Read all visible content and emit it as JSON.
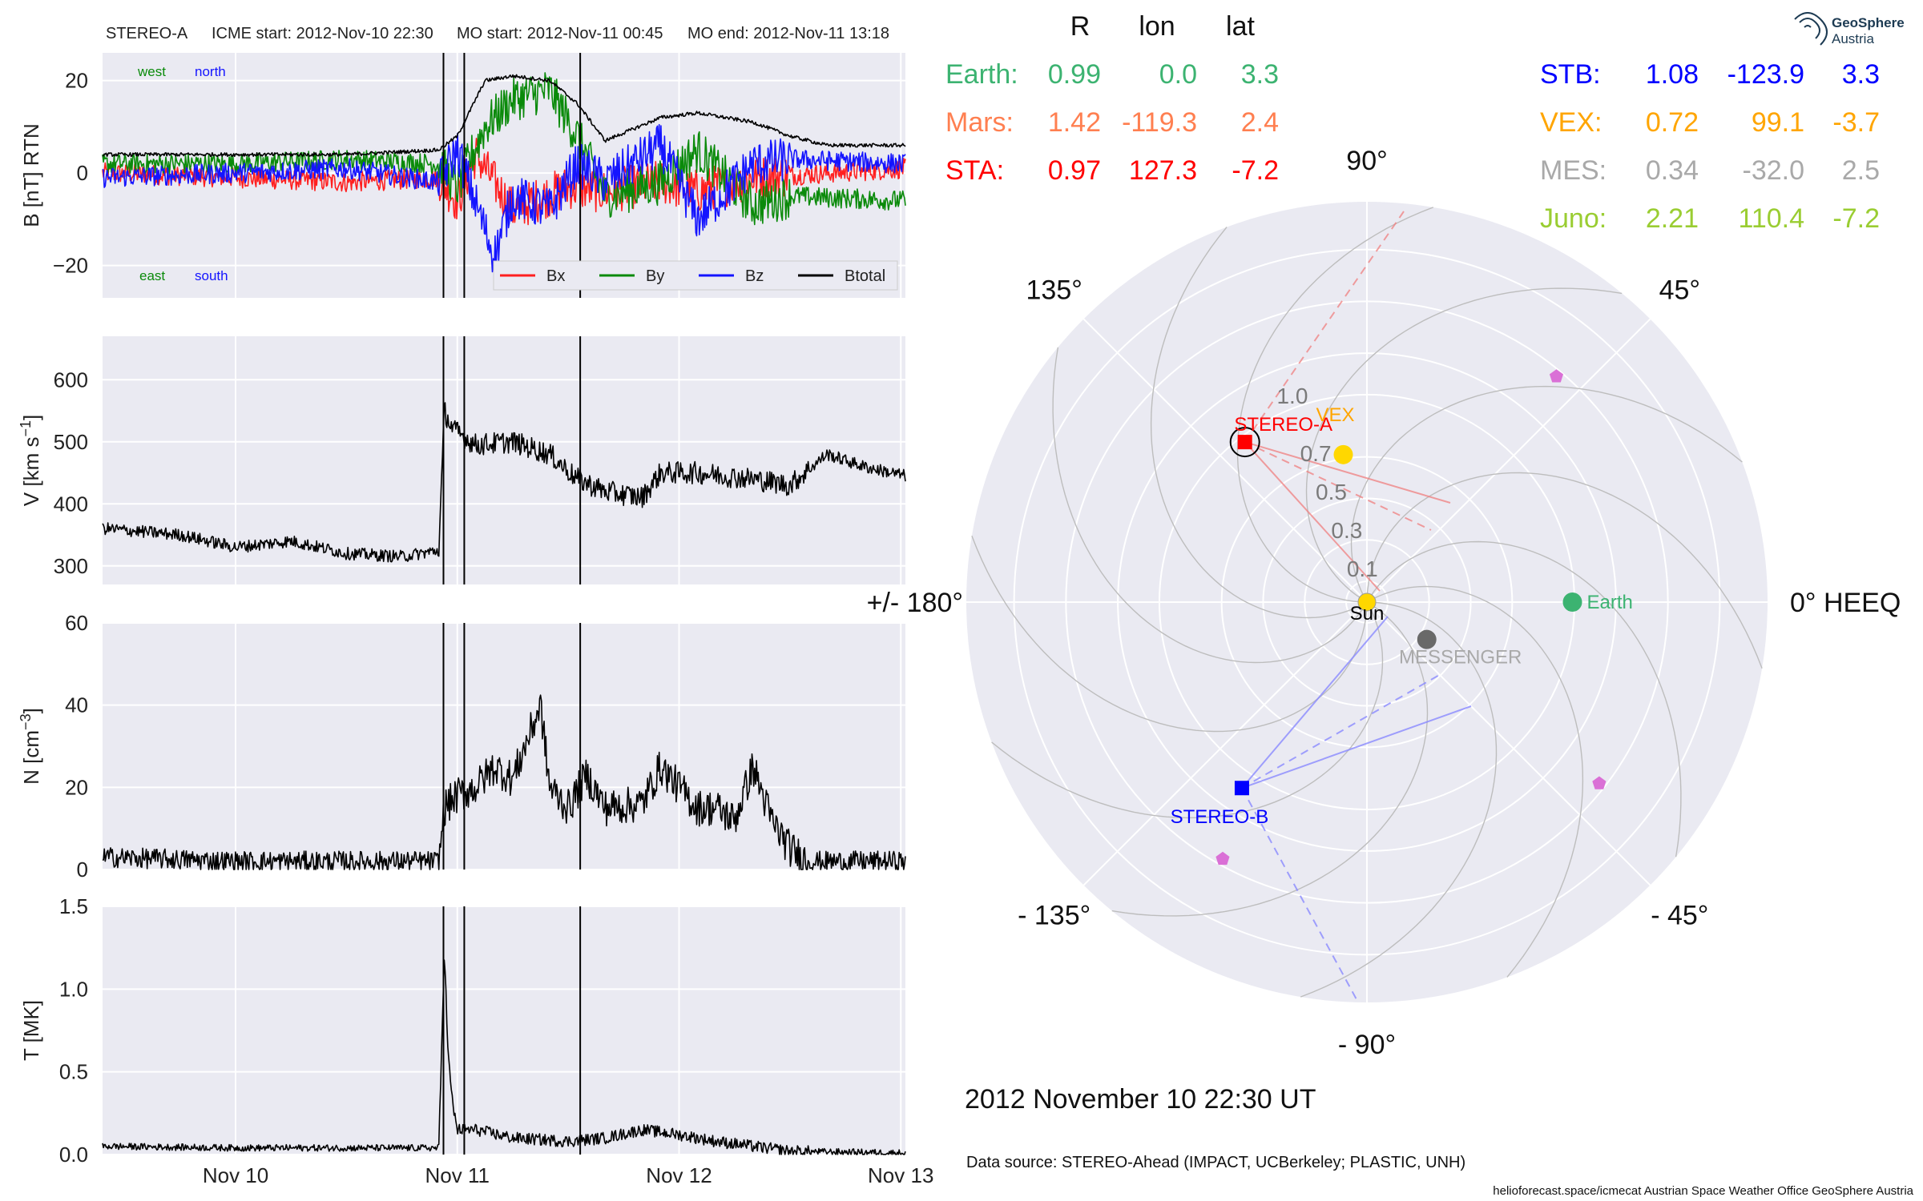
{
  "header": {
    "spacecraft": "STEREO-A",
    "icme_start": "ICME start: 2012-Nov-10 22:30",
    "mo_start": "MO start: 2012-Nov-11 00:45",
    "mo_end": "MO end: 2012-Nov-11 13:18"
  },
  "logo": {
    "line1": "GeoSphere",
    "line2": "Austria"
  },
  "event_markers_hours": [
    22.5,
    24.75,
    37.3
  ],
  "time_axis": {
    "start_hours": -14.4,
    "end_hours": 72.5,
    "ticks": [
      {
        "h": 0,
        "label": "Nov 10"
      },
      {
        "h": 24,
        "label": "Nov 11"
      },
      {
        "h": 48,
        "label": "Nov 12"
      },
      {
        "h": 72,
        "label": "Nov 13"
      }
    ]
  },
  "panels": {
    "b": {
      "ylabel": "B [nT] RTN",
      "ylim": [
        -27,
        26
      ],
      "yticks": [
        {
          "v": 20,
          "label": "20"
        },
        {
          "v": 0,
          "label": "0"
        },
        {
          "v": -20,
          "label": "−20"
        }
      ],
      "annotations": {
        "west": "west",
        "north": "north",
        "east": "east",
        "south": "south"
      },
      "legend": [
        {
          "name": "Bx",
          "color": "#ff1f1f"
        },
        {
          "name": "By",
          "color": "#0a8a0a"
        },
        {
          "name": "Bz",
          "color": "#1414ff"
        },
        {
          "name": "Btotal",
          "color": "#000000"
        }
      ]
    },
    "v": {
      "ylabel": "V [km s",
      "ylabel_sup": "−1",
      "ylabel_end": "]",
      "ylim": [
        270,
        670
      ],
      "yticks": [
        {
          "v": 600,
          "label": "600"
        },
        {
          "v": 500,
          "label": "500"
        },
        {
          "v": 400,
          "label": "400"
        },
        {
          "v": 300,
          "label": "300"
        }
      ]
    },
    "n": {
      "ylabel": "N [cm",
      "ylabel_sup": "−3",
      "ylabel_end": "]",
      "ylim": [
        0,
        60
      ],
      "yticks": [
        {
          "v": 60,
          "label": "60"
        },
        {
          "v": 40,
          "label": "40"
        },
        {
          "v": 20,
          "label": "20"
        },
        {
          "v": 0,
          "label": "0"
        }
      ]
    },
    "t": {
      "ylabel": "T [MK]",
      "ylim": [
        0,
        1.5
      ],
      "yticks": [
        {
          "v": 1.5,
          "label": "1.5"
        },
        {
          "v": 1.0,
          "label": "1.0"
        },
        {
          "v": 0.5,
          "label": "0.5"
        },
        {
          "v": 0.0,
          "label": "0.0"
        }
      ]
    }
  },
  "chart_data": {
    "type": "line",
    "x_unit": "hours since 2012-11-10 00:00 UT",
    "series": [
      {
        "panel": "b",
        "name": "Bx",
        "x": [
          -14,
          0,
          12,
          22,
          24,
          26,
          30,
          36,
          40,
          46,
          50,
          56,
          72.5
        ],
        "values": [
          0,
          -1,
          -2,
          -1,
          -6,
          4,
          -8,
          -3,
          -4,
          -2,
          -4,
          -1,
          1
        ]
      },
      {
        "panel": "b",
        "name": "By",
        "x": [
          -14,
          0,
          12,
          22,
          24,
          27,
          30,
          34,
          37,
          40,
          46,
          50,
          56,
          60,
          72.5
        ],
        "values": [
          2,
          2,
          3,
          2,
          -3,
          10,
          16,
          18,
          8,
          -5,
          -2,
          5,
          -7,
          -5,
          -6
        ]
      },
      {
        "panel": "b",
        "name": "Bz",
        "x": [
          -14,
          0,
          12,
          22,
          24,
          28,
          30,
          34,
          37,
          40,
          46,
          50,
          56,
          60,
          72.5
        ],
        "values": [
          -1,
          0,
          1,
          -2,
          5,
          -18,
          -5,
          -8,
          2,
          -2,
          6,
          -10,
          2,
          3,
          2
        ]
      },
      {
        "panel": "b",
        "name": "Btotal",
        "x": [
          -14,
          0,
          12,
          22,
          24,
          27,
          30,
          34,
          37,
          40,
          46,
          50,
          56,
          60,
          64,
          72.5
        ],
        "values": [
          4,
          4,
          4,
          5,
          8,
          20,
          21,
          20,
          15,
          7,
          12,
          13,
          11,
          8,
          6,
          6
        ]
      },
      {
        "panel": "v",
        "name": "V",
        "x": [
          -14,
          -6,
          0,
          6,
          12,
          18,
          22,
          22.6,
          23.5,
          26,
          30,
          34,
          37,
          40,
          44,
          46,
          50,
          56,
          60,
          64,
          68,
          72.5
        ],
        "values": [
          360,
          350,
          330,
          340,
          320,
          315,
          325,
          550,
          520,
          495,
          500,
          480,
          440,
          420,
          410,
          450,
          450,
          440,
          430,
          480,
          460,
          445
        ]
      },
      {
        "panel": "n",
        "name": "N",
        "x": [
          -14,
          0,
          12,
          22,
          22.6,
          24,
          26,
          28,
          30,
          33,
          34,
          36,
          38,
          40,
          44,
          46,
          50,
          52,
          54,
          56,
          58,
          60,
          62,
          72.5
        ],
        "values": [
          3,
          2,
          2,
          2,
          15,
          18,
          20,
          25,
          22,
          40,
          20,
          15,
          23,
          15,
          16,
          25,
          15,
          15,
          12,
          25,
          12,
          5,
          2,
          2
        ]
      },
      {
        "panel": "t",
        "name": "T",
        "x": [
          -14,
          0,
          12,
          22,
          22.6,
          23,
          23.5,
          24,
          26,
          30,
          36,
          40,
          44,
          48,
          52,
          56,
          60,
          72.5
        ],
        "values": [
          0.05,
          0.04,
          0.04,
          0.04,
          1.25,
          0.6,
          0.3,
          0.15,
          0.15,
          0.1,
          0.08,
          0.1,
          0.15,
          0.12,
          0.08,
          0.05,
          0.02,
          0.01
        ]
      }
    ],
    "polar": {
      "coordinate_system": "HEEQ",
      "r_ticks": [
        {
          "r": 0.1,
          "label": "0.1"
        },
        {
          "r": 0.3,
          "label": "0.3"
        },
        {
          "r": 0.5,
          "label": "0.5"
        },
        {
          "r": 0.7,
          "label": "0.7"
        },
        {
          "r": 1.0,
          "label": "1.0"
        }
      ],
      "angle_labels": [
        {
          "deg": 0,
          "label": "0° HEEQ"
        },
        {
          "deg": 45,
          "label": "45°"
        },
        {
          "deg": 90,
          "label": "90°"
        },
        {
          "deg": 135,
          "label": "135°"
        },
        {
          "deg": 180,
          "label": "+/- 180°"
        },
        {
          "deg": -135,
          "label": "- 135°"
        },
        {
          "deg": -90,
          "label": "- 90°"
        },
        {
          "deg": -45,
          "label": "- 45°"
        }
      ],
      "bodies": [
        {
          "name": "Sun",
          "label": "Sun",
          "r": 0.0,
          "lon": 0,
          "color": "#ffd700",
          "marker": "circle"
        },
        {
          "name": "Earth",
          "label": "Earth",
          "r": 0.99,
          "lon": 0.0,
          "color": "#3cb371",
          "marker": "circle"
        },
        {
          "name": "VEX",
          "label": "VEX",
          "r": 0.72,
          "lon": 99.1,
          "color": "#ffd700",
          "marker": "circle"
        },
        {
          "name": "MESSENGER",
          "label": "MESSENGER",
          "r": 0.34,
          "lon": -32.0,
          "color": "#696969",
          "marker": "circle"
        },
        {
          "name": "STEREO-A",
          "label": "STEREO-A",
          "r": 0.97,
          "lon": 127.3,
          "color": "#ff0000",
          "marker": "square"
        },
        {
          "name": "STEREO-B",
          "label": "STEREO-B",
          "r": 1.08,
          "lon": -123.9,
          "color": "#0000ff",
          "marker": "square"
        },
        {
          "name": "Mars",
          "label": "",
          "r": 1.42,
          "lon": -119.3,
          "color": "#ff7f50",
          "marker": "pentagon"
        }
      ]
    }
  },
  "table": {
    "headers": {
      "r": "R",
      "lon": "lon",
      "lat": "lat"
    },
    "left": [
      {
        "name": "Earth:",
        "r": "0.99",
        "lon": "0.0",
        "lat": "3.3",
        "color": "#3cb371"
      },
      {
        "name": "Mars:",
        "r": "1.42",
        "lon": "-119.3",
        "lat": "2.4",
        "color": "#ff7f50"
      },
      {
        "name": "STA:",
        "r": "0.97",
        "lon": "127.3",
        "lat": "-7.2",
        "color": "#ff0000"
      }
    ],
    "right": [
      {
        "name": "STB:",
        "r": "1.08",
        "lon": "-123.9",
        "lat": "3.3",
        "color": "#0000ff"
      },
      {
        "name": "VEX:",
        "r": "0.72",
        "lon": "99.1",
        "lat": "-3.7",
        "color": "#ffa500"
      },
      {
        "name": "MES:",
        "r": "0.34",
        "lon": "-32.0",
        "lat": "2.5",
        "color": "#a9a9a9"
      },
      {
        "name": "Juno:",
        "r": "2.21",
        "lon": "110.4",
        "lat": "-7.2",
        "color": "#9acd32"
      }
    ]
  },
  "date_title": "2012 November 10  22:30 UT",
  "data_source": "Data source: STEREO-Ahead (IMPACT, UCBerkeley; PLASTIC, UNH)",
  "footer": "helioforecast.space/icmecat   Austrian Space Weather Office   GeoSphere Austria"
}
